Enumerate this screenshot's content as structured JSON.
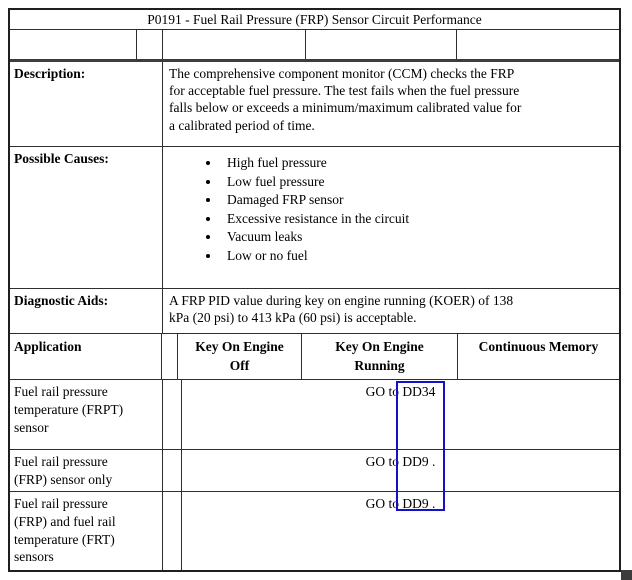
{
  "title": "P0191 - Fuel Rail Pressure (FRP) Sensor Circuit Performance",
  "info_rows": {
    "description": {
      "label": "Description:",
      "text": "The comprehensive component monitor (CCM) checks the FRP\nfor acceptable fuel pressure. The test fails when the fuel pressure\nfalls below or exceeds a minimum/maximum calibrated value for\na calibrated period of time."
    },
    "possible_causes": {
      "label": "Possible Causes:",
      "items": [
        "High fuel pressure",
        "Low fuel pressure",
        "Damaged FRP sensor",
        "Excessive resistance in the circuit",
        "Vacuum leaks",
        "Low or no fuel"
      ]
    },
    "diagnostic_aids": {
      "label": "Diagnostic Aids:",
      "text": "A FRP PID value during key on engine running (KOER) of 138\nkPa (20 psi) to 413 kPa (60 psi) is acceptable."
    }
  },
  "app_table": {
    "headers": [
      "Application",
      "Key On Engine\nOff",
      "Key On Engine\nRunning",
      "Continuous Memory"
    ],
    "rows": [
      {
        "application": "Fuel rail pressure\ntemperature (FRPT)\nsensor",
        "action": "GO to DD34",
        "link_target": "DD34"
      },
      {
        "application": "Fuel rail pressure\n(FRP) sensor only",
        "action": "GO to DD9 .",
        "link_target": "DD9"
      },
      {
        "application": "Fuel rail pressure\n(FRP) and fuel rail\ntemperature (FRT)\nsensors",
        "action": "GO to DD9 .",
        "link_target": "DD9"
      }
    ]
  },
  "colors": {
    "link_annotation": "#1213c8",
    "table_border": "#2e2e2e"
  }
}
